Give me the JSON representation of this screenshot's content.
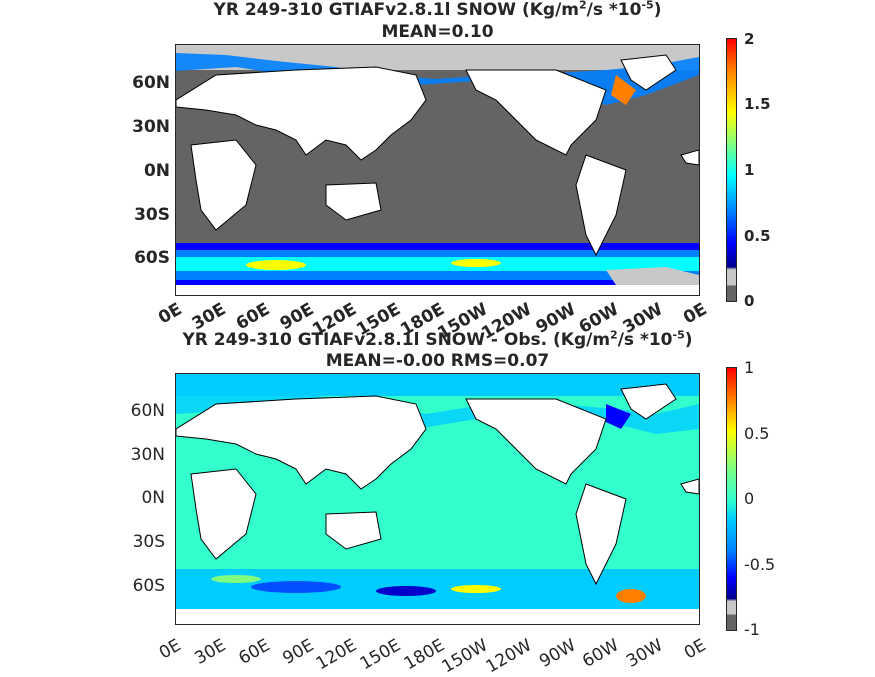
{
  "top": {
    "title_line1": "YR 249-310 GTIAFv2.8.1l SNOW (Kg/m",
    "title_sup1": "2",
    "title_mid": "/s   *10",
    "title_sup2": "-5",
    "title_end": ")",
    "title_line2": "MEAN=0.10",
    "lat_labels": [
      "60N",
      "30N",
      "0N",
      "30S",
      "60S"
    ],
    "lon_labels": [
      "0E",
      "30E",
      "60E",
      "90E",
      "120E",
      "150E",
      "180E",
      "150W",
      "120W",
      "90W",
      "60W",
      "30W",
      "0E"
    ],
    "colorbar_ticks": [
      "2",
      "1.5",
      "1",
      "0.5",
      "0"
    ],
    "colormap": [
      "#00008f",
      "#0000ff",
      "#0080ff",
      "#00ffff",
      "#80ff80",
      "#ffff00",
      "#ff8000",
      "#ff0000",
      "#800000"
    ],
    "land_color": "#ffffff",
    "zero_color": "#646464",
    "ice_color": "#c8c8c8"
  },
  "bottom": {
    "title_line1": "YR 249-310 GTIAFv2.8.1l SNOW - Obs. (Kg/m",
    "title_sup1": "2",
    "title_mid": "/s *10",
    "title_sup2": "-5",
    "title_end": ")",
    "title_line2": "MEAN=-0.00   RMS=0.07",
    "lat_labels": [
      "60N",
      "30N",
      "0N",
      "30S",
      "60S"
    ],
    "lon_labels": [
      "0E",
      "30E",
      "60E",
      "90E",
      "120E",
      "150E",
      "180E",
      "150W",
      "120W",
      "90W",
      "60W",
      "30W",
      "0E"
    ],
    "colorbar_ticks": [
      "1",
      "0.5",
      "0",
      "-0.5",
      "-1"
    ],
    "background_color": "#33ffcc"
  }
}
